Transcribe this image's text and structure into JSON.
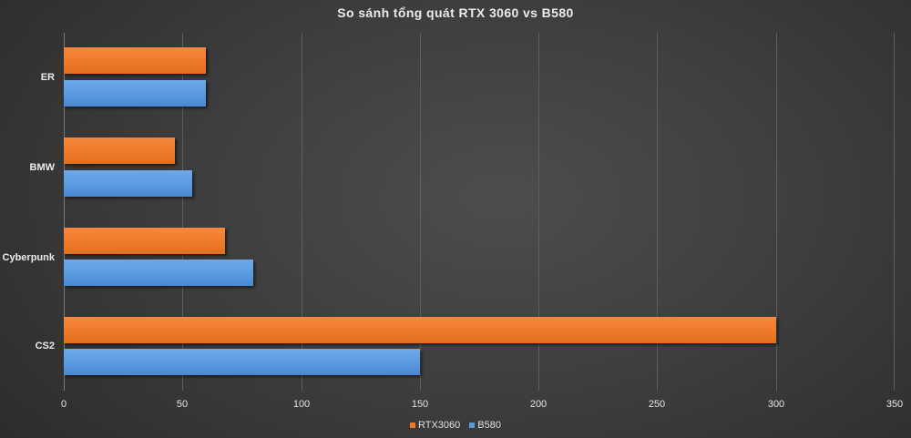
{
  "chart_data": {
    "type": "bar",
    "orientation": "horizontal",
    "title": "So sánh tổng quát RTX 3060 vs B580",
    "xlabel": "",
    "ylabel": "",
    "categories": [
      "ER",
      "BMW",
      "Cyberpunk",
      "CS2"
    ],
    "series": [
      {
        "name": "RTX3060",
        "color": "#ee7a28",
        "values": [
          60,
          47,
          68,
          300
        ]
      },
      {
        "name": "B580",
        "color": "#5a9ae0",
        "values": [
          60,
          54,
          80,
          150
        ]
      }
    ],
    "xlim": [
      0,
      350
    ],
    "x_ticks": [
      "0",
      "50",
      "100",
      "150",
      "200",
      "250",
      "300",
      "350"
    ],
    "grid": "vertical",
    "legend_position": "bottom"
  },
  "legend": [
    {
      "label": "RTX3060",
      "color": "#ee7a28"
    },
    {
      "label": "B580",
      "color": "#5a9ae0"
    }
  ]
}
